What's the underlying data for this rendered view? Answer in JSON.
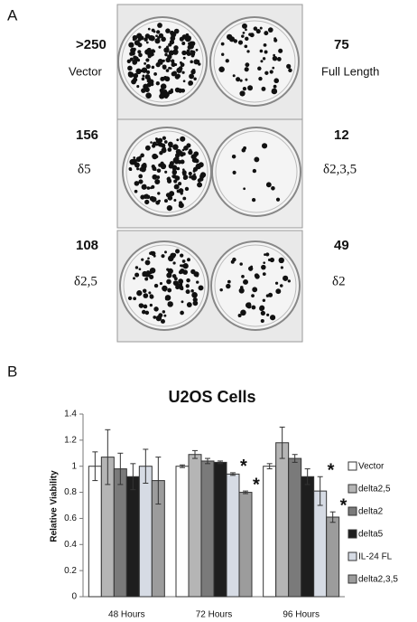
{
  "panel_a": {
    "label": "A",
    "plates": [
      {
        "count": ">250",
        "name": "Vector"
      },
      {
        "count": 75,
        "name": "Full Length"
      },
      {
        "count": 156,
        "name": "δ5"
      },
      {
        "count": 12,
        "name": "δ2,3,5"
      },
      {
        "count": 108,
        "name": "δ2,5"
      },
      {
        "count": 49,
        "name": "δ2"
      }
    ]
  },
  "panel_b": {
    "label": "B"
  },
  "chart_data": {
    "type": "bar",
    "title": "U2OS Cells",
    "y_label": "Relative Viability",
    "categories": [
      "48 Hours",
      "72 Hours",
      "96 Hours"
    ],
    "ylim": [
      0,
      1.4
    ],
    "yticks": [
      0,
      0.2,
      0.4,
      0.6,
      0.8,
      1,
      1.2,
      1.4
    ],
    "legend": "right",
    "series": [
      {
        "name": "Vector",
        "color": "#ffffff",
        "values": [
          1.0,
          1.0,
          1.0
        ],
        "errors": [
          0.11,
          0.01,
          0.02
        ],
        "annotations": [
          null,
          null,
          null
        ]
      },
      {
        "name": "delta2,5",
        "color": "#b5b5b5",
        "values": [
          1.07,
          1.09,
          1.18
        ],
        "errors": [
          0.21,
          0.03,
          0.12
        ],
        "annotations": [
          null,
          null,
          null
        ]
      },
      {
        "name": "delta2",
        "color": "#7a7a7a",
        "values": [
          0.98,
          1.04,
          1.06
        ],
        "errors": [
          0.12,
          0.02,
          0.03
        ],
        "annotations": [
          null,
          null,
          null
        ]
      },
      {
        "name": "delta5",
        "color": "#1e1e1e",
        "values": [
          0.92,
          1.03,
          0.92
        ],
        "errors": [
          0.1,
          0.01,
          0.06
        ],
        "annotations": [
          null,
          null,
          null
        ]
      },
      {
        "name": "IL-24 FL",
        "color": "#d6dbe4",
        "values": [
          1.0,
          0.94,
          0.81
        ],
        "errors": [
          0.13,
          0.01,
          0.11
        ],
        "annotations": [
          null,
          "*",
          "*"
        ]
      },
      {
        "name": "delta2,3,5",
        "color": "#9c9c9c",
        "values": [
          0.89,
          0.8,
          0.61
        ],
        "errors": [
          0.18,
          0.01,
          0.04
        ],
        "annotations": [
          null,
          "*",
          "*"
        ]
      }
    ]
  }
}
